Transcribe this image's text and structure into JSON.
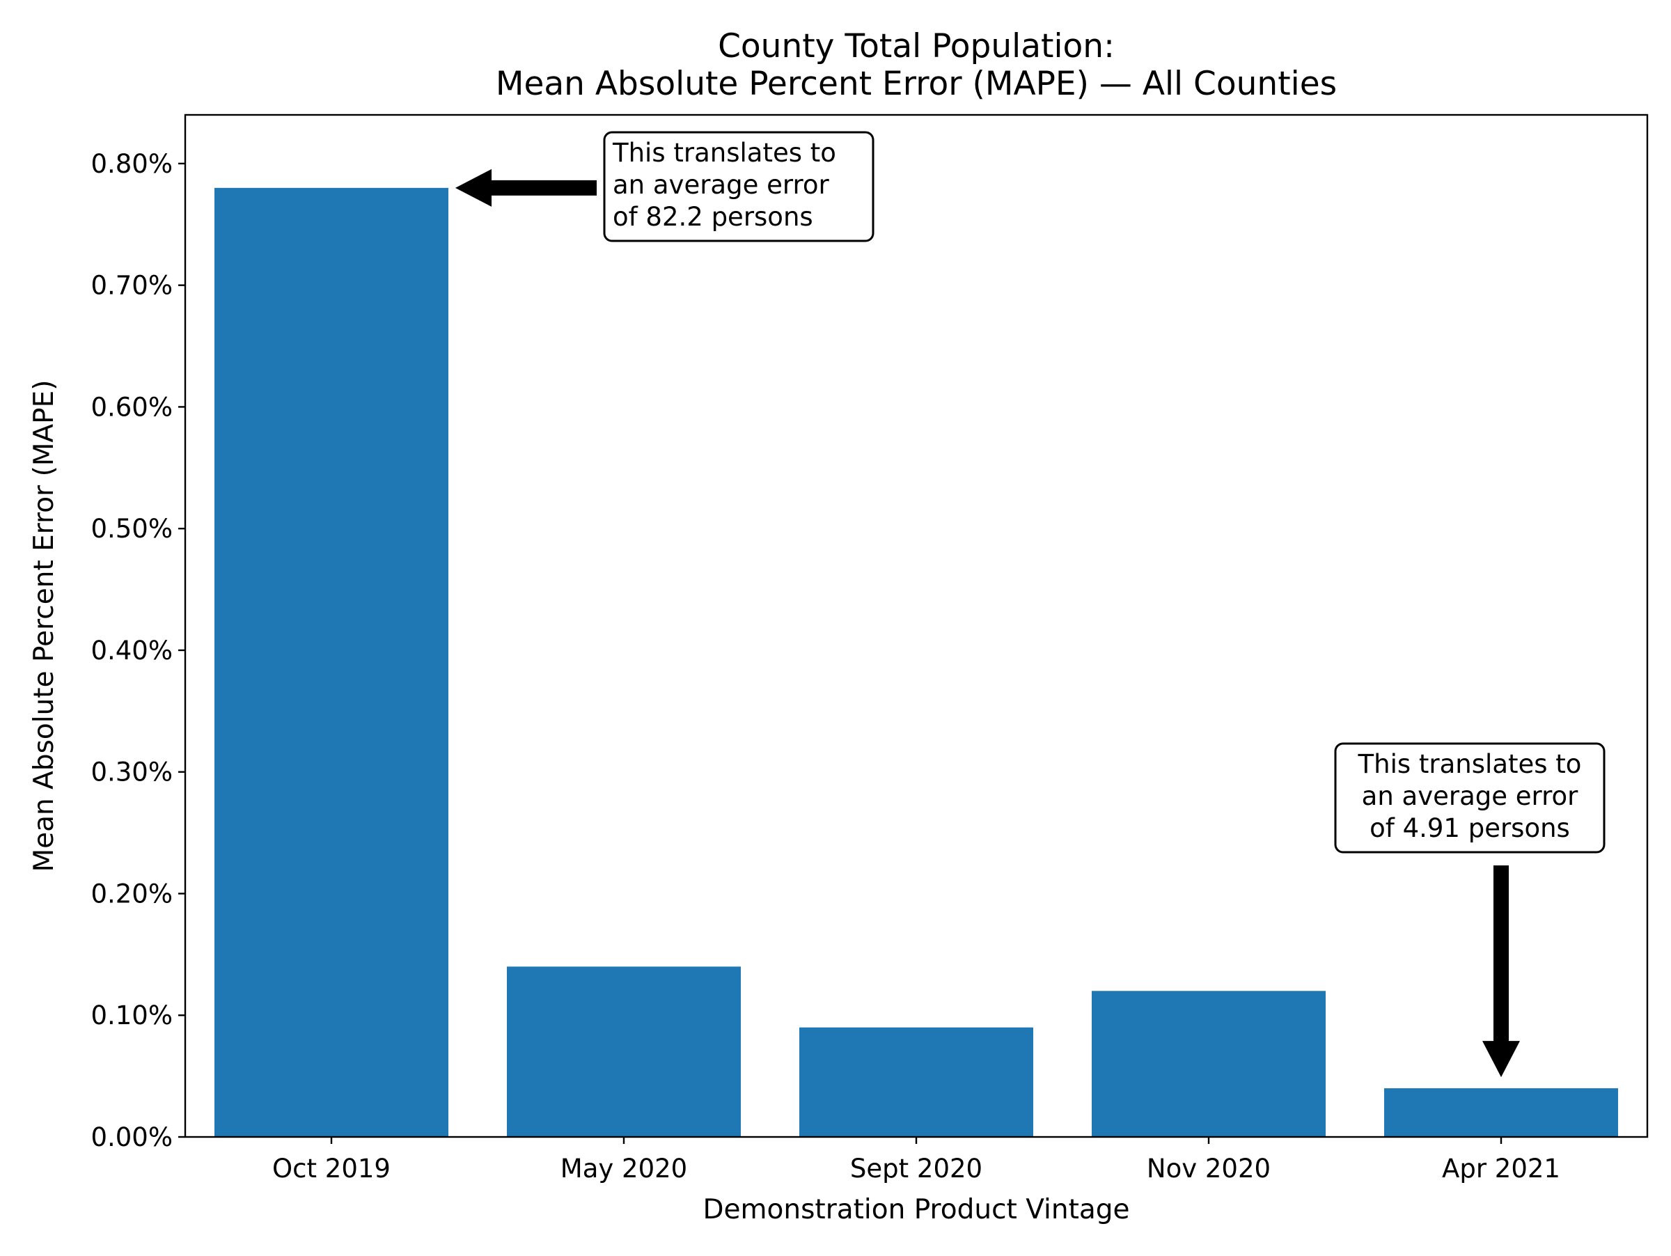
{
  "chart_data": {
    "type": "bar",
    "title_lines": [
      "County Total Population:",
      "Mean Absolute Percent Error (MAPE) — All Counties"
    ],
    "xlabel": "Demonstration Product Vintage",
    "ylabel": "Mean Absolute Percent Error (MAPE)",
    "categories": [
      "Oct 2019",
      "May 2020",
      "Sept 2020",
      "Nov 2020",
      "Apr 2021"
    ],
    "values": [
      0.78,
      0.14,
      0.09,
      0.12,
      0.04
    ],
    "value_unit": "%",
    "ylim": [
      0,
      0.84
    ],
    "yticks": [
      0.0,
      0.1,
      0.2,
      0.3,
      0.4,
      0.5,
      0.6,
      0.7,
      0.8
    ],
    "ytick_labels": [
      "0.00%",
      "0.10%",
      "0.20%",
      "0.30%",
      "0.40%",
      "0.50%",
      "0.60%",
      "0.70%",
      "0.80%"
    ],
    "bar_color": "#1f77b4",
    "grid": false,
    "legend": null,
    "annotations": [
      {
        "target_category": "Oct 2019",
        "lines": [
          "This translates to",
          "an average error",
          "of 82.2 persons"
        ],
        "arrow_direction": "left"
      },
      {
        "target_category": "Apr 2021",
        "lines": [
          "This translates to",
          "an average error",
          "of 4.91 persons"
        ],
        "arrow_direction": "down"
      }
    ]
  }
}
